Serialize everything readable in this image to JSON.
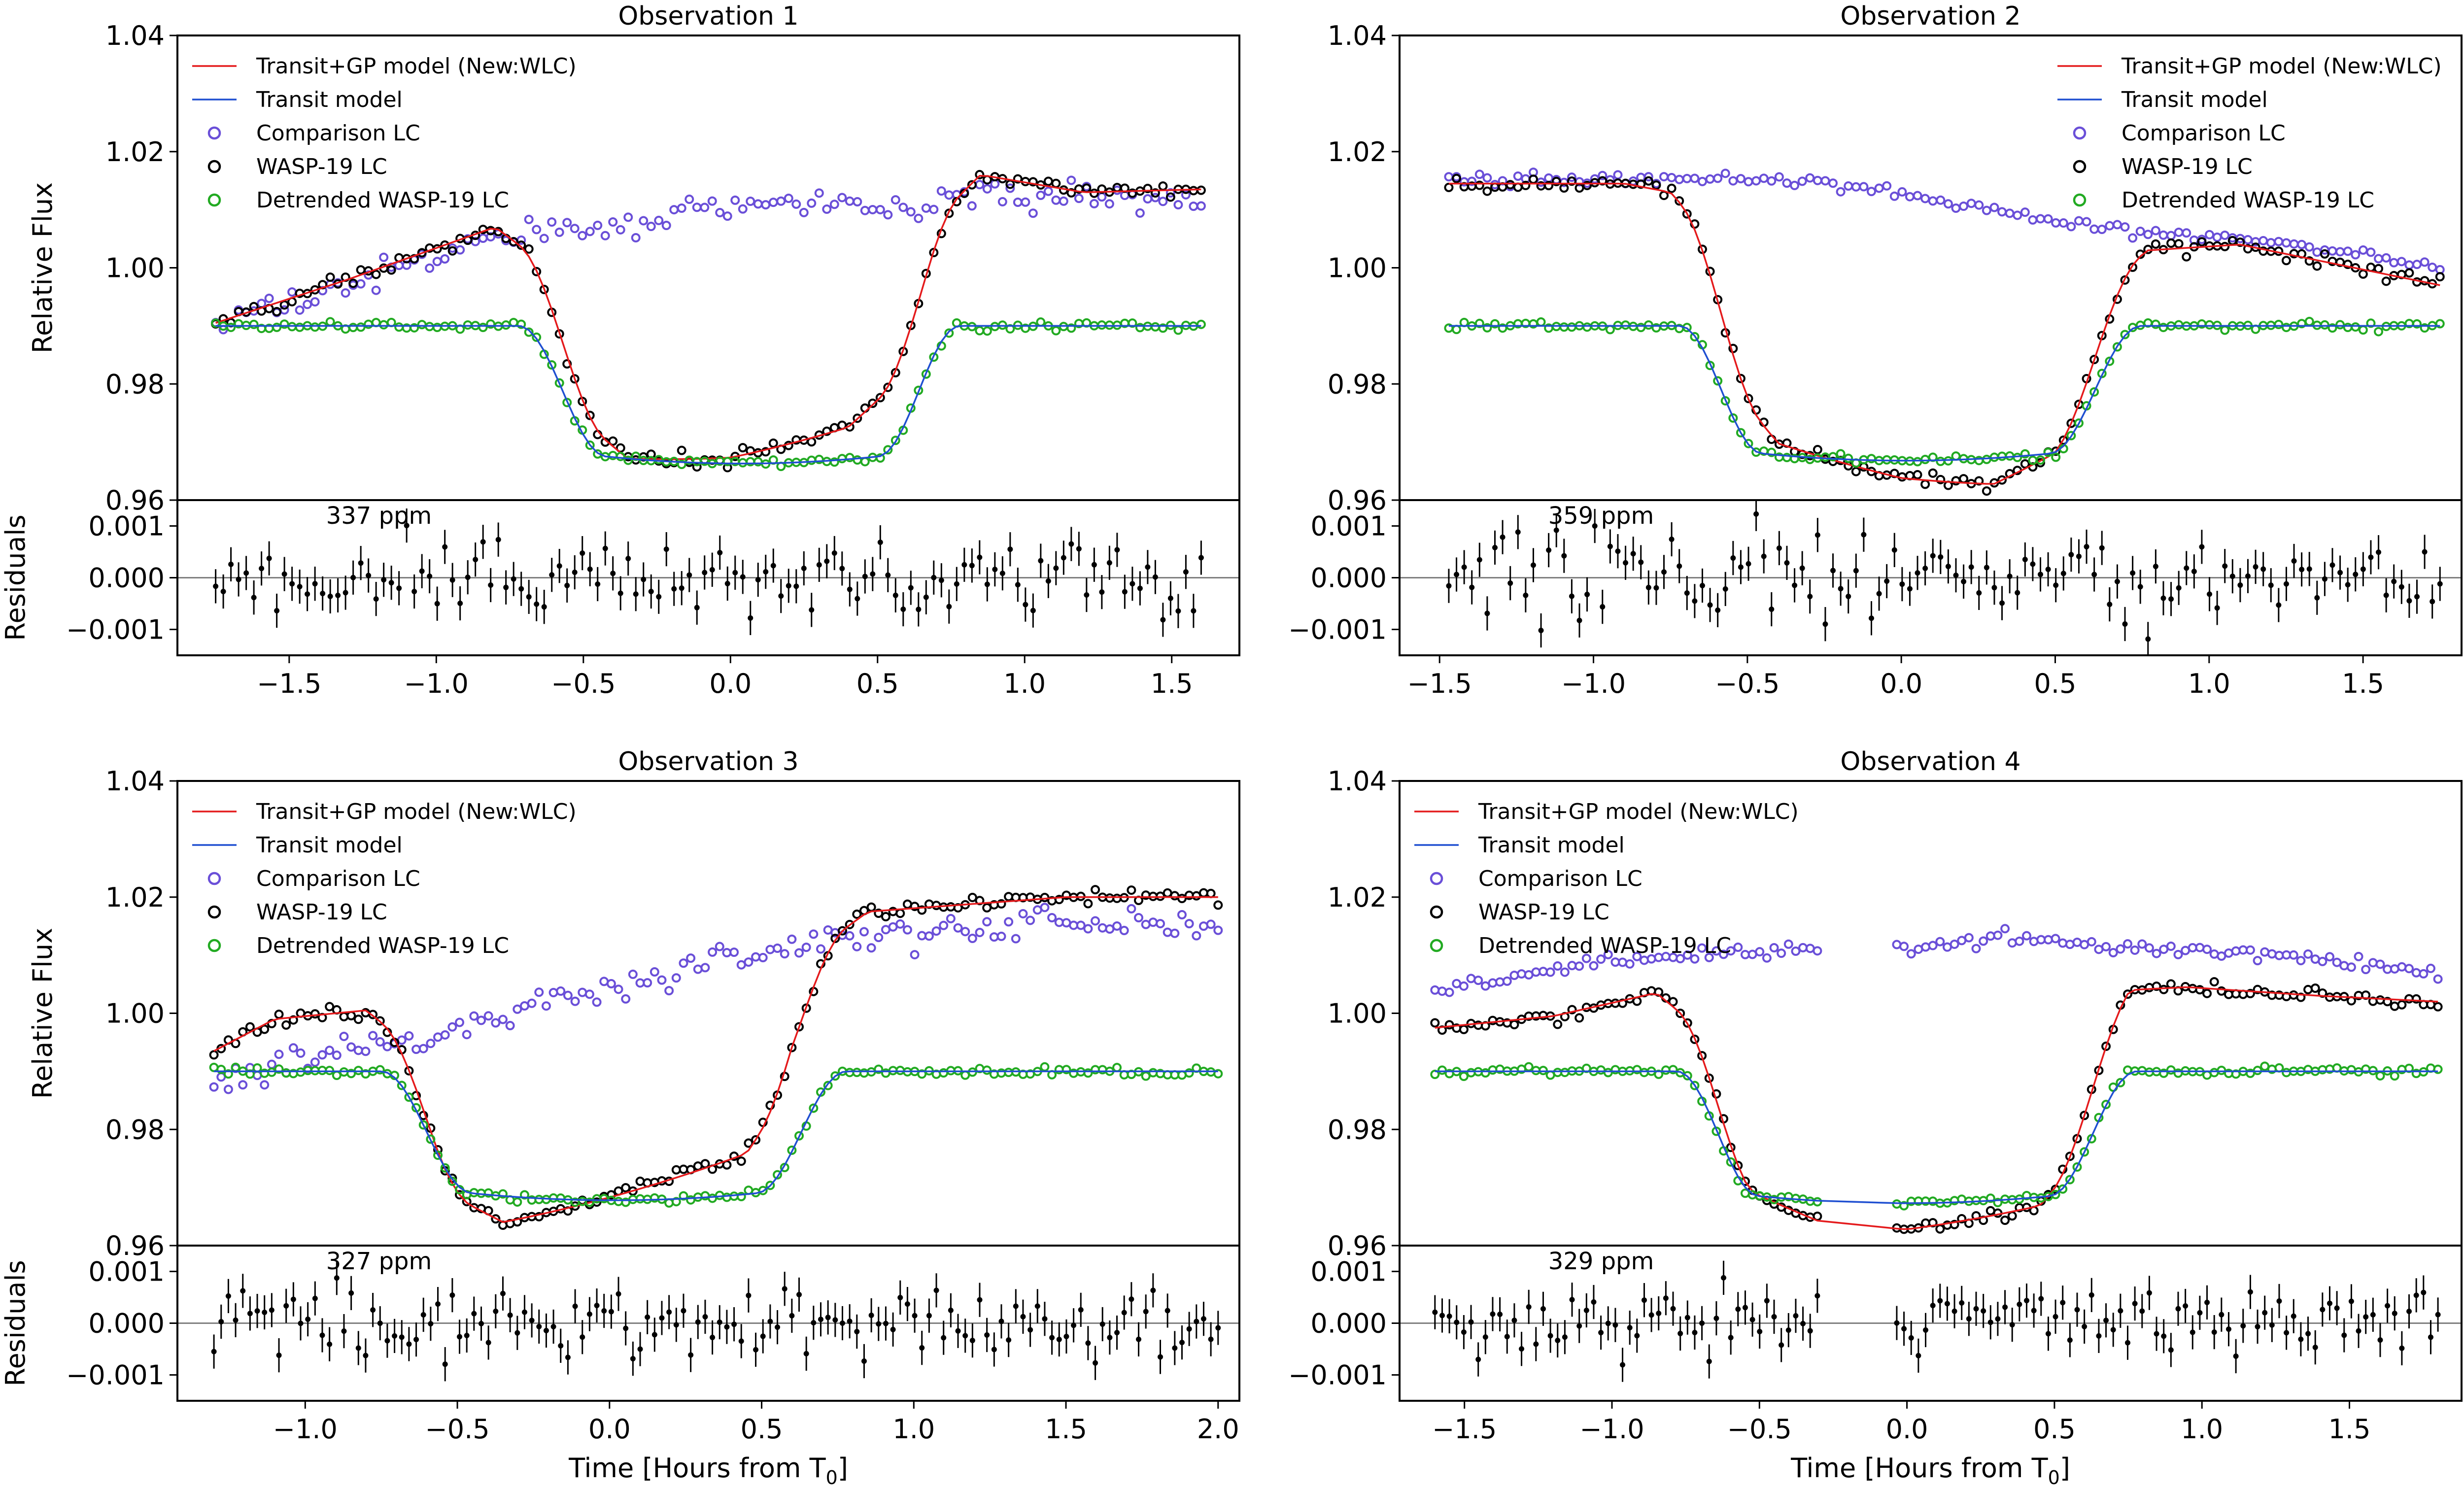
{
  "figure": {
    "colors": {
      "gp_model": "#e41a1c",
      "transit_model": "#1f4fd1",
      "comparison": "#6a4fd8",
      "wasp": "#000000",
      "detrended": "#22aa22",
      "residual_line": "#808080"
    },
    "xlabel": "Time [Hours from T",
    "xlabel_sub": "0",
    "xlabel_end": "]"
  },
  "chart_data": [
    {
      "type": "scatter",
      "title": "Observation 1",
      "ylabel_top": "Relative Flux",
      "ylabel_bottom": "Residuals",
      "rms_label": "337 ppm",
      "legend": [
        "Transit+GP model (New:WLC)",
        "Transit model",
        "Comparison LC",
        "WASP-19 LC",
        "Detrended WASP-19 LC"
      ],
      "legend_position": "top-left",
      "xlim": [
        -1.88,
        1.73
      ],
      "ylim": [
        0.96,
        1.04
      ],
      "res_ylim": [
        -0.0015,
        0.0015
      ],
      "xticks": [
        -1.5,
        -1.0,
        -0.5,
        0.0,
        0.5,
        1.0,
        1.5
      ],
      "xtick_labels": [
        "−1.5",
        "−1.0",
        "−0.5",
        "0.0",
        "0.5",
        "1.0",
        "1.5"
      ],
      "yticks": [
        0.96,
        0.98,
        1.0,
        1.02,
        1.04
      ],
      "ytick_labels": [
        "0.96",
        "0.98",
        "1.00",
        "1.02",
        "1.04"
      ],
      "res_yticks": [
        -0.001,
        0.0,
        0.001
      ],
      "res_ytick_labels": [
        "−0.001",
        "0.000",
        "0.001"
      ],
      "time_range": [
        -1.75,
        1.6
      ],
      "gap": null,
      "seed": 11,
      "transit": {
        "t1": -0.72,
        "t2": -0.42,
        "t3": 0.5,
        "t4": 0.78,
        "depth": 0.0225
      },
      "wasp_trend": [
        [
          -1.75,
          0.9905
        ],
        [
          -1.3,
          0.998
        ],
        [
          -0.8,
          1.007
        ],
        [
          -0.35,
          0.99
        ],
        [
          0.0,
          0.991
        ],
        [
          0.4,
          0.9955
        ],
        [
          0.65,
          1.006
        ],
        [
          0.85,
          1.016
        ],
        [
          1.2,
          1.013
        ],
        [
          1.6,
          1.0135
        ]
      ],
      "comp_trend": [
        [
          -1.75,
          0.99
        ],
        [
          -1.3,
          0.997
        ],
        [
          -0.8,
          1.005
        ],
        [
          -0.3,
          1.008
        ],
        [
          0.3,
          1.012
        ],
        [
          0.6,
          1.01
        ],
        [
          0.9,
          1.013
        ],
        [
          1.6,
          1.011
        ]
      ],
      "comp_scatter": 0.0012,
      "wasp_scatter": 0.0006,
      "res_scatter": 0.00037,
      "n_points": 130
    },
    {
      "type": "scatter",
      "title": "Observation 2",
      "ylabel_top": "",
      "ylabel_bottom": "",
      "rms_label": "359 ppm",
      "legend": [
        "Transit+GP model (New:WLC)",
        "Transit model",
        "Comparison LC",
        "WASP-19 LC",
        "Detrended WASP-19 LC"
      ],
      "legend_position": "top-right",
      "xlim": [
        -1.63,
        1.82
      ],
      "ylim": [
        0.96,
        1.04
      ],
      "res_ylim": [
        -0.0015,
        0.0015
      ],
      "xticks": [
        -1.5,
        -1.0,
        -0.5,
        0.0,
        0.5,
        1.0,
        1.5
      ],
      "xtick_labels": [
        "−1.5",
        "−1.0",
        "−0.5",
        "0.0",
        "0.5",
        "1.0",
        "1.5"
      ],
      "yticks": [
        0.96,
        0.98,
        1.0,
        1.02,
        1.04
      ],
      "ytick_labels": [
        "0.96",
        "0.98",
        "1.00",
        "1.02",
        "1.04"
      ],
      "res_yticks": [
        -0.001,
        0.0,
        0.001
      ],
      "res_ytick_labels": [
        "−0.001",
        "0.000",
        "0.001"
      ],
      "time_range": [
        -1.47,
        1.75
      ],
      "gap": null,
      "seed": 23,
      "transit": {
        "t1": -0.72,
        "t2": -0.45,
        "t3": 0.48,
        "t4": 0.78,
        "depth": 0.022
      },
      "wasp_trend": [
        [
          -1.47,
          1.0145
        ],
        [
          -0.9,
          1.0145
        ],
        [
          -0.75,
          1.013
        ],
        [
          -0.4,
          0.992
        ],
        [
          0.0,
          0.987
        ],
        [
          0.3,
          0.9855
        ],
        [
          0.5,
          0.99
        ],
        [
          0.8,
          1.003
        ],
        [
          1.1,
          1.004
        ],
        [
          1.75,
          0.997
        ]
      ],
      "comp_trend": [
        [
          -1.47,
          1.0155
        ],
        [
          -0.8,
          1.015
        ],
        [
          -0.3,
          1.015
        ],
        [
          0.3,
          1.01
        ],
        [
          0.8,
          1.006
        ],
        [
          1.3,
          1.004
        ],
        [
          1.75,
          1.0
        ]
      ],
      "comp_scatter": 0.0005,
      "wasp_scatter": 0.0006,
      "res_scatter": 0.0004,
      "n_points": 130
    },
    {
      "type": "scatter",
      "title": "Observation 3",
      "ylabel_top": "Relative Flux",
      "ylabel_bottom": "Residuals",
      "rms_label": "327 ppm",
      "legend": [
        "Transit+GP model (New:WLC)",
        "Transit model",
        "Comparison LC",
        "WASP-19 LC",
        "Detrended WASP-19 LC"
      ],
      "legend_position": "top-left",
      "xlim": [
        -1.42,
        2.07
      ],
      "ylim": [
        0.96,
        1.04
      ],
      "res_ylim": [
        -0.0015,
        0.0015
      ],
      "xticks": [
        -1.0,
        -0.5,
        0.0,
        0.5,
        1.0,
        1.5,
        2.0
      ],
      "xtick_labels": [
        "−1.0",
        "−0.5",
        "0.0",
        "0.5",
        "1.0",
        "1.5",
        "2.0"
      ],
      "yticks": [
        0.96,
        0.98,
        1.0,
        1.02,
        1.04
      ],
      "ytick_labels": [
        "0.96",
        "0.98",
        "1.00",
        "1.02",
        "1.04"
      ],
      "res_yticks": [
        -0.001,
        0.0,
        0.001
      ],
      "res_ytick_labels": [
        "−0.001",
        "0.000",
        "0.001"
      ],
      "time_range": [
        -1.3,
        2.0
      ],
      "gap": null,
      "seed": 37,
      "transit": {
        "t1": -0.75,
        "t2": -0.45,
        "t3": 0.48,
        "t4": 0.78,
        "depth": 0.021
      },
      "wasp_trend": [
        [
          -1.3,
          0.9935
        ],
        [
          -1.1,
          0.999
        ],
        [
          -0.8,
          1.0005
        ],
        [
          -0.55,
          0.99
        ],
        [
          -0.35,
          0.9855
        ],
        [
          0.0,
          0.9905
        ],
        [
          0.45,
          0.997
        ],
        [
          0.6,
          1.008
        ],
        [
          0.85,
          1.0175
        ],
        [
          1.5,
          1.02
        ],
        [
          2.0,
          1.02
        ]
      ],
      "comp_trend": [
        [
          -1.3,
          0.988
        ],
        [
          -1.0,
          0.992
        ],
        [
          -0.6,
          0.996
        ],
        [
          -0.2,
          1.002
        ],
        [
          0.3,
          1.008
        ],
        [
          0.8,
          1.013
        ],
        [
          1.3,
          1.015
        ],
        [
          1.7,
          1.0165
        ],
        [
          2.0,
          1.015
        ]
      ],
      "comp_scatter": 0.0012,
      "wasp_scatter": 0.0006,
      "res_scatter": 0.00036,
      "n_points": 140
    },
    {
      "type": "scatter",
      "title": "Observation 4",
      "ylabel_top": "",
      "ylabel_bottom": "",
      "rms_label": "329 ppm",
      "legend": [
        "Transit+GP model (New:WLC)",
        "Transit model",
        "Comparison LC",
        "WASP-19 LC",
        "Detrended WASP-19 LC"
      ],
      "legend_position": "top-left",
      "xlim": [
        -1.72,
        1.88
      ],
      "ylim": [
        0.96,
        1.04
      ],
      "res_ylim": [
        -0.0015,
        0.0015
      ],
      "xticks": [
        -1.5,
        -1.0,
        -0.5,
        0.0,
        0.5,
        1.0,
        1.5
      ],
      "xtick_labels": [
        "−1.5",
        "−1.0",
        "−0.5",
        "0.0",
        "0.5",
        "1.0",
        "1.5"
      ],
      "yticks": [
        0.96,
        0.98,
        1.0,
        1.02,
        1.04
      ],
      "ytick_labels": [
        "0.96",
        "0.98",
        "1.00",
        "1.02",
        "1.04"
      ],
      "res_yticks": [
        -0.001,
        0.0,
        0.001
      ],
      "res_ytick_labels": [
        "−0.001",
        "0.000",
        "0.001"
      ],
      "time_range": [
        -1.6,
        1.8
      ],
      "gap": [
        -0.3,
        -0.05
      ],
      "seed": 53,
      "transit": {
        "t1": -0.78,
        "t2": -0.5,
        "t3": 0.48,
        "t4": 0.78,
        "depth": 0.0215
      },
      "wasp_trend": [
        [
          -1.6,
          0.9975
        ],
        [
          -1.2,
          0.9995
        ],
        [
          -0.85,
          1.0035
        ],
        [
          -0.55,
          0.991
        ],
        [
          -0.3,
          0.9865
        ],
        [
          0.0,
          0.9855
        ],
        [
          0.45,
          0.9885
        ],
        [
          0.75,
          1.004
        ],
        [
          0.95,
          1.0045
        ],
        [
          1.4,
          1.003
        ],
        [
          1.8,
          1.002
        ]
      ],
      "comp_trend": [
        [
          -1.6,
          1.004
        ],
        [
          -1.0,
          1.009
        ],
        [
          -0.5,
          1.011
        ],
        [
          0.0,
          1.0115
        ],
        [
          0.35,
          1.013
        ],
        [
          0.8,
          1.011
        ],
        [
          1.3,
          1.01
        ],
        [
          1.8,
          1.007
        ]
      ],
      "comp_scatter": 0.0006,
      "wasp_scatter": 0.0006,
      "res_scatter": 0.00035,
      "n_points": 140
    }
  ]
}
